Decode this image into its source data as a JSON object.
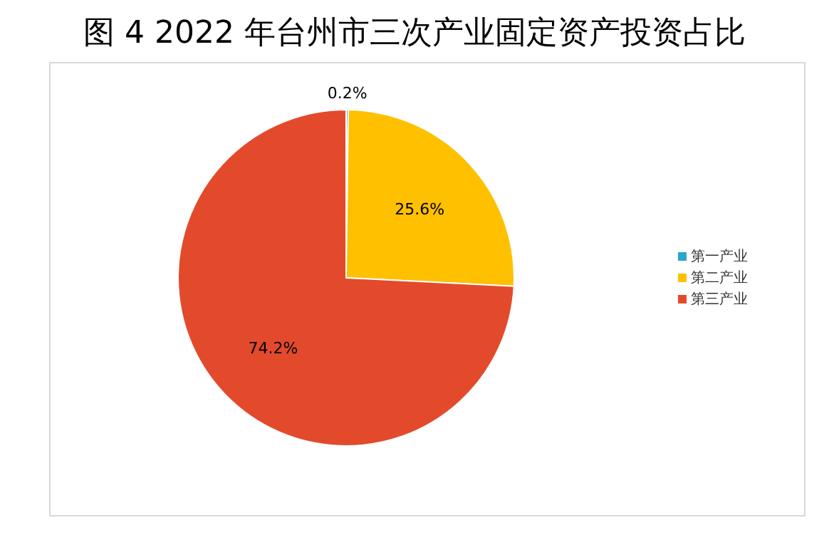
{
  "chart_data": {
    "type": "pie",
    "title": "图 4  2022 年台州市三次产业固定资产投资占比",
    "categories": [
      "第一产业",
      "第二产业",
      "第三产业"
    ],
    "values": [
      0.2,
      25.6,
      74.2
    ],
    "colors": [
      "#2aa7c9",
      "#ffc000",
      "#e34a2c"
    ],
    "value_labels": [
      "0.2%",
      "25.6%",
      "74.2%"
    ],
    "legend": "right"
  }
}
